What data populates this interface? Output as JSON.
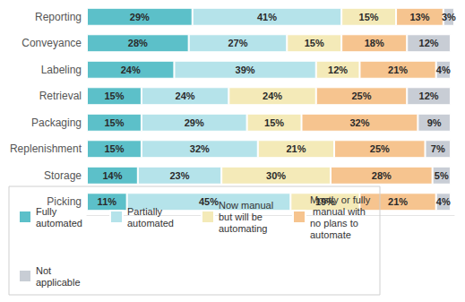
{
  "chart_data": {
    "type": "bar",
    "orientation": "horizontal",
    "stacked": true,
    "data_labels": true,
    "tick_labels": "y",
    "legend": "bottom",
    "grid": false,
    "xlim": [
      0,
      101
    ],
    "categories": [
      "Reporting",
      "Conveyance",
      "Labeling",
      "Retrieval",
      "Packaging",
      "Replenishment",
      "Storage",
      "Picking"
    ],
    "series": [
      {
        "name": "Fully automated",
        "color": "#5cc0c9",
        "values": [
          29,
          28,
          24,
          15,
          15,
          15,
          14,
          11
        ],
        "value_labels": [
          "29%",
          "28%",
          "24%",
          "15%",
          "15%",
          "15%",
          "14%",
          "11%"
        ]
      },
      {
        "name": "Partially automated",
        "color": "#b5e3ea",
        "values": [
          41,
          27,
          39,
          24,
          29,
          32,
          23,
          45
        ],
        "value_labels": [
          "41%",
          "27%",
          "39%",
          "24%",
          "29%",
          "32%",
          "23%",
          "45%"
        ]
      },
      {
        "name": "Now manual but will be automating",
        "color": "#f4eab8",
        "values": [
          15,
          15,
          12,
          24,
          15,
          21,
          30,
          19
        ],
        "value_labels": [
          "15%",
          "15%",
          "12%",
          "24%",
          "15%",
          "21%",
          "30%",
          "19%"
        ]
      },
      {
        "name": "Mostly or fully manual with no plans to automate",
        "color": "#f6c48f",
        "values": [
          13,
          18,
          21,
          25,
          32,
          25,
          28,
          21
        ],
        "value_labels": [
          "13%",
          "18%",
          "21%",
          "25%",
          "32%",
          "25%",
          "28%",
          "21%"
        ]
      },
      {
        "name": "Not applicable",
        "color": "#c8cdd5",
        "values": [
          3,
          12,
          4,
          12,
          9,
          7,
          5,
          4
        ],
        "value_labels": [
          "3%",
          "12%",
          "4%",
          "12%",
          "9%",
          "7%",
          "5%",
          "4%"
        ]
      }
    ]
  }
}
